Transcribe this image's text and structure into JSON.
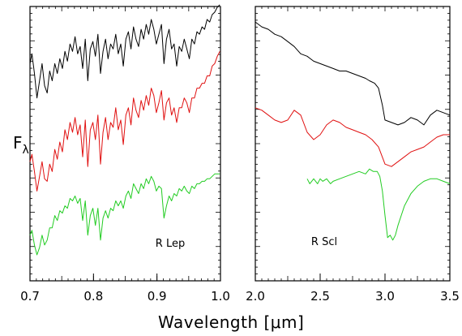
{
  "figure": {
    "ylabel": "F",
    "ylabel_sub": "λ",
    "xlabel": "Wavelength [μm]"
  },
  "colors": {
    "black": "#000000",
    "red": "#e01010",
    "green": "#22cc22"
  },
  "chart_data": [
    {
      "type": "line",
      "annotation": "R Lep",
      "xlim": [
        0.7,
        1.0
      ],
      "ylim": [
        0,
        1
      ],
      "y_ticks_labeled": false,
      "x_ticks": [
        0.7,
        0.8,
        0.9,
        1.0
      ],
      "x_tick_labels": [
        "0.7",
        "0.8",
        "0.9",
        "1.0"
      ],
      "series": [
        {
          "color": "#000000",
          "x": [
            0.7,
            0.703,
            0.707,
            0.711,
            0.715,
            0.719,
            0.723,
            0.727,
            0.731,
            0.735,
            0.739,
            0.743,
            0.747,
            0.751,
            0.755,
            0.759,
            0.763,
            0.767,
            0.771,
            0.775,
            0.779,
            0.783,
            0.787,
            0.791,
            0.795,
            0.799,
            0.803,
            0.807,
            0.811,
            0.815,
            0.819,
            0.823,
            0.827,
            0.831,
            0.835,
            0.839,
            0.843,
            0.847,
            0.851,
            0.855,
            0.859,
            0.863,
            0.867,
            0.871,
            0.875,
            0.879,
            0.883,
            0.887,
            0.891,
            0.895,
            0.899,
            0.903,
            0.907,
            0.911,
            0.915,
            0.919,
            0.923,
            0.927,
            0.931,
            0.935,
            0.939,
            0.943,
            0.947,
            0.951,
            0.955,
            0.959,
            0.963,
            0.967,
            0.971,
            0.975,
            0.979,
            0.983,
            0.987,
            0.991,
            0.995,
            0.999
          ],
          "y": [
            0.8,
            0.84,
            0.76,
            0.66,
            0.73,
            0.8,
            0.71,
            0.68,
            0.77,
            0.73,
            0.8,
            0.76,
            0.82,
            0.78,
            0.85,
            0.81,
            0.88,
            0.85,
            0.91,
            0.84,
            0.87,
            0.78,
            0.9,
            0.73,
            0.86,
            0.89,
            0.83,
            0.92,
            0.76,
            0.85,
            0.9,
            0.82,
            0.88,
            0.86,
            0.92,
            0.84,
            0.88,
            0.79,
            0.9,
            0.93,
            0.86,
            0.95,
            0.9,
            0.87,
            0.94,
            0.9,
            0.96,
            0.92,
            0.98,
            0.94,
            0.88,
            0.92,
            0.96,
            0.8,
            0.9,
            0.94,
            0.86,
            0.88,
            0.79,
            0.87,
            0.85,
            0.9,
            0.86,
            0.82,
            0.9,
            0.88,
            0.93,
            0.92,
            0.95,
            0.94,
            0.98,
            0.97,
            1.0,
            1.01,
            1.03,
            1.04
          ]
        },
        {
          "color": "#e01010",
          "x": [
            0.7,
            0.703,
            0.707,
            0.711,
            0.715,
            0.719,
            0.723,
            0.727,
            0.731,
            0.735,
            0.739,
            0.743,
            0.747,
            0.751,
            0.755,
            0.759,
            0.763,
            0.767,
            0.771,
            0.775,
            0.779,
            0.783,
            0.787,
            0.791,
            0.795,
            0.799,
            0.803,
            0.807,
            0.811,
            0.815,
            0.819,
            0.823,
            0.827,
            0.831,
            0.835,
            0.839,
            0.843,
            0.847,
            0.851,
            0.855,
            0.859,
            0.863,
            0.867,
            0.871,
            0.875,
            0.879,
            0.883,
            0.887,
            0.891,
            0.895,
            0.899,
            0.903,
            0.907,
            0.911,
            0.915,
            0.919,
            0.923,
            0.927,
            0.931,
            0.935,
            0.939,
            0.943,
            0.947,
            0.951,
            0.955,
            0.959,
            0.963,
            0.967,
            0.971,
            0.975,
            0.979,
            0.983,
            0.987,
            0.991,
            0.995,
            0.999
          ],
          "y": [
            0.4,
            0.43,
            0.36,
            0.28,
            0.34,
            0.4,
            0.33,
            0.32,
            0.39,
            0.36,
            0.45,
            0.41,
            0.48,
            0.44,
            0.53,
            0.49,
            0.56,
            0.52,
            0.58,
            0.51,
            0.55,
            0.42,
            0.57,
            0.38,
            0.53,
            0.56,
            0.49,
            0.59,
            0.39,
            0.52,
            0.58,
            0.49,
            0.56,
            0.54,
            0.62,
            0.53,
            0.57,
            0.47,
            0.59,
            0.62,
            0.55,
            0.66,
            0.61,
            0.58,
            0.65,
            0.61,
            0.67,
            0.63,
            0.7,
            0.67,
            0.6,
            0.64,
            0.69,
            0.57,
            0.64,
            0.66,
            0.59,
            0.62,
            0.56,
            0.62,
            0.62,
            0.66,
            0.64,
            0.6,
            0.66,
            0.66,
            0.7,
            0.7,
            0.72,
            0.72,
            0.75,
            0.75,
            0.79,
            0.8,
            0.83,
            0.85
          ]
        },
        {
          "color": "#22cc22",
          "x": [
            0.7,
            0.703,
            0.707,
            0.711,
            0.715,
            0.719,
            0.723,
            0.727,
            0.731,
            0.735,
            0.739,
            0.743,
            0.747,
            0.751,
            0.755,
            0.759,
            0.763,
            0.767,
            0.771,
            0.775,
            0.779,
            0.783,
            0.787,
            0.791,
            0.795,
            0.799,
            0.803,
            0.807,
            0.811,
            0.815,
            0.819,
            0.823,
            0.827,
            0.831,
            0.835,
            0.839,
            0.843,
            0.847,
            0.851,
            0.855,
            0.859,
            0.863,
            0.867,
            0.871,
            0.875,
            0.879,
            0.883,
            0.887,
            0.891,
            0.895,
            0.899,
            0.903,
            0.907,
            0.911,
            0.915,
            0.919,
            0.923,
            0.927,
            0.931,
            0.935,
            0.939,
            0.943,
            0.947,
            0.951,
            0.955,
            0.959,
            0.963,
            0.967,
            0.971,
            0.975,
            0.979,
            0.983,
            0.987,
            0.991,
            0.995,
            0.999
          ],
          "y": [
            0.1,
            0.12,
            0.06,
            0.02,
            0.05,
            0.1,
            0.06,
            0.08,
            0.13,
            0.13,
            0.18,
            0.16,
            0.2,
            0.19,
            0.22,
            0.21,
            0.25,
            0.24,
            0.26,
            0.23,
            0.25,
            0.16,
            0.24,
            0.1,
            0.18,
            0.21,
            0.14,
            0.21,
            0.08,
            0.17,
            0.2,
            0.17,
            0.21,
            0.2,
            0.24,
            0.22,
            0.24,
            0.21,
            0.26,
            0.28,
            0.25,
            0.31,
            0.29,
            0.27,
            0.31,
            0.29,
            0.33,
            0.31,
            0.34,
            0.32,
            0.28,
            0.3,
            0.29,
            0.17,
            0.22,
            0.26,
            0.24,
            0.27,
            0.26,
            0.29,
            0.28,
            0.3,
            0.28,
            0.27,
            0.3,
            0.29,
            0.31,
            0.31,
            0.32,
            0.32,
            0.33,
            0.33,
            0.34,
            0.35,
            0.35,
            0.35
          ]
        }
      ]
    },
    {
      "type": "line",
      "annotation": "R Scl",
      "xlim": [
        2.0,
        3.5
      ],
      "ylim": [
        0,
        1
      ],
      "y_ticks_labeled": false,
      "x_ticks": [
        2.0,
        2.5,
        3.0,
        3.5
      ],
      "x_tick_labels": [
        "2.0",
        "2.5",
        "3.0",
        "3.5"
      ],
      "series": [
        {
          "color": "#000000",
          "x": [
            2.0,
            2.05,
            2.1,
            2.15,
            2.2,
            2.25,
            2.3,
            2.35,
            2.4,
            2.45,
            2.5,
            2.55,
            2.6,
            2.65,
            2.7,
            2.75,
            2.8,
            2.85,
            2.88,
            2.92,
            2.95,
            2.98,
            3.0,
            3.05,
            3.1,
            3.15,
            3.2,
            3.25,
            3.3,
            3.35,
            3.4,
            3.45,
            3.5
          ],
          "y": [
            0.97,
            0.95,
            0.94,
            0.92,
            0.91,
            0.89,
            0.87,
            0.84,
            0.83,
            0.81,
            0.8,
            0.79,
            0.78,
            0.77,
            0.77,
            0.76,
            0.75,
            0.74,
            0.73,
            0.72,
            0.7,
            0.63,
            0.57,
            0.56,
            0.55,
            0.56,
            0.58,
            0.57,
            0.55,
            0.59,
            0.61,
            0.6,
            0.59
          ]
        },
        {
          "color": "#e01010",
          "x": [
            2.0,
            2.05,
            2.1,
            2.15,
            2.2,
            2.25,
            2.3,
            2.35,
            2.4,
            2.45,
            2.5,
            2.55,
            2.6,
            2.65,
            2.7,
            2.75,
            2.8,
            2.85,
            2.9,
            2.95,
            3.0,
            3.05,
            3.1,
            3.15,
            3.2,
            3.25,
            3.3,
            3.35,
            3.4,
            3.45,
            3.5
          ],
          "y": [
            0.62,
            0.61,
            0.59,
            0.57,
            0.56,
            0.57,
            0.61,
            0.59,
            0.52,
            0.49,
            0.51,
            0.55,
            0.57,
            0.56,
            0.54,
            0.53,
            0.52,
            0.51,
            0.49,
            0.46,
            0.39,
            0.38,
            0.4,
            0.42,
            0.44,
            0.45,
            0.46,
            0.48,
            0.5,
            0.51,
            0.51
          ]
        },
        {
          "color": "#22cc22",
          "x": [
            2.4,
            2.42,
            2.45,
            2.48,
            2.5,
            2.52,
            2.55,
            2.58,
            2.6,
            2.65,
            2.7,
            2.75,
            2.8,
            2.85,
            2.88,
            2.91,
            2.94,
            2.96,
            2.98,
            3.0,
            3.02,
            3.04,
            3.06,
            3.08,
            3.1,
            3.15,
            3.2,
            3.25,
            3.3,
            3.35,
            3.4,
            3.45,
            3.5
          ],
          "y": [
            0.33,
            0.31,
            0.33,
            0.31,
            0.33,
            0.32,
            0.33,
            0.31,
            0.32,
            0.33,
            0.34,
            0.35,
            0.36,
            0.35,
            0.37,
            0.36,
            0.36,
            0.34,
            0.28,
            0.18,
            0.09,
            0.1,
            0.08,
            0.1,
            0.14,
            0.22,
            0.27,
            0.3,
            0.32,
            0.33,
            0.33,
            0.32,
            0.31
          ]
        }
      ]
    }
  ]
}
